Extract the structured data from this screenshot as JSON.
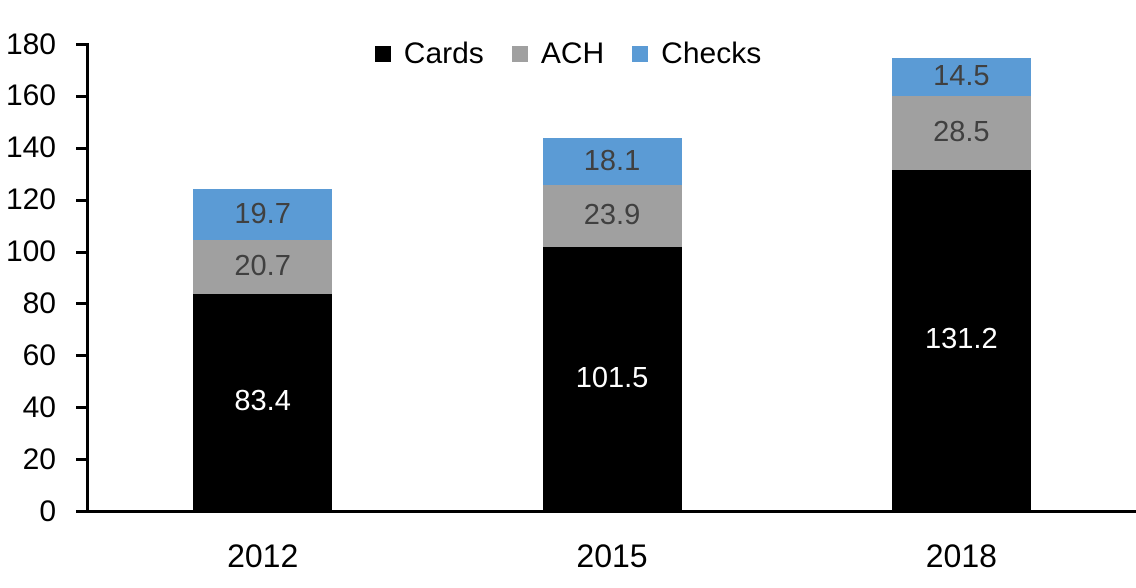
{
  "chart_data": {
    "type": "bar",
    "stacked": true,
    "categories": [
      "2012",
      "2015",
      "2018"
    ],
    "series": [
      {
        "name": "Cards",
        "color": "#000000",
        "label_color": "#ffffff",
        "values": [
          83.4,
          101.5,
          131.2
        ]
      },
      {
        "name": "ACH",
        "color": "#a0a0a0",
        "label_color": "#404040",
        "values": [
          20.7,
          23.9,
          28.5
        ]
      },
      {
        "name": "Checks",
        "color": "#5b9bd5",
        "label_color": "#404040",
        "values": [
          19.7,
          18.1,
          14.5
        ]
      }
    ],
    "ylim": [
      0,
      180
    ],
    "yticks": [
      0,
      20,
      40,
      60,
      80,
      100,
      120,
      140,
      160,
      180
    ],
    "legend": {
      "position": "top",
      "entries": [
        "Cards",
        "ACH",
        "Checks"
      ]
    },
    "grid": false,
    "data_labels": true,
    "axis_color": "#000000",
    "background_color": "#ffffff"
  }
}
